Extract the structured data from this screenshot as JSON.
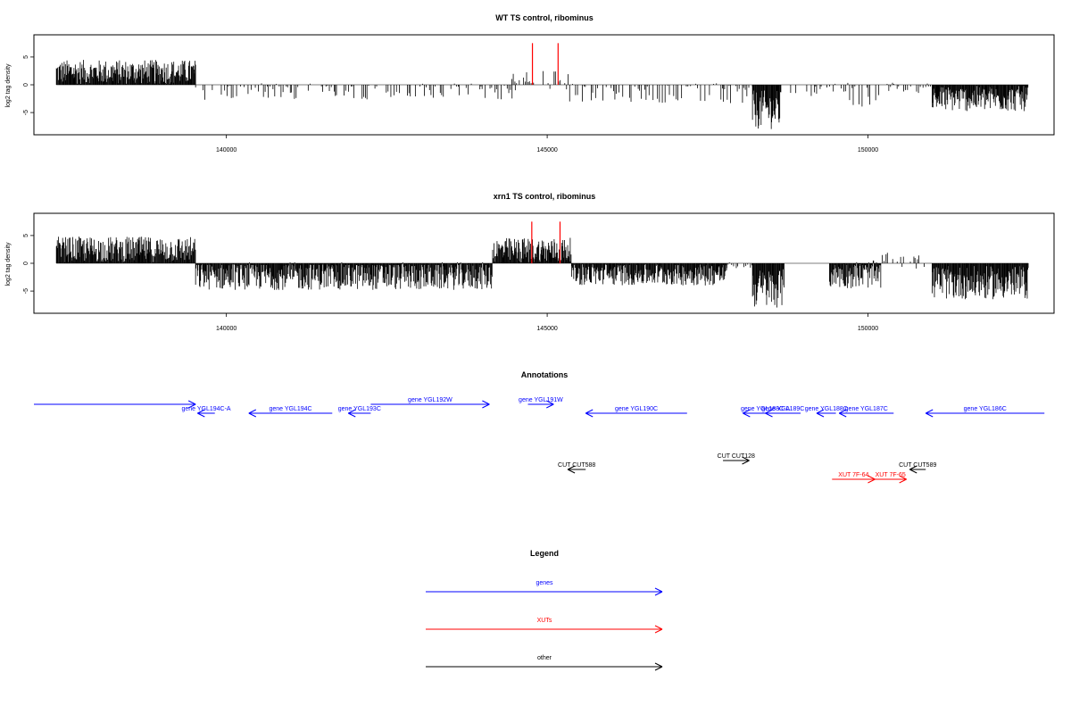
{
  "chart_data": [
    {
      "type": "bar",
      "title": "WT TS control, ribominus",
      "ylabel": "log2 tag density",
      "xlabel": "",
      "xlim": [
        137000,
        152900
      ],
      "ylim": [
        -9,
        9
      ],
      "yticks": [
        -5,
        0,
        5
      ],
      "xticks": [
        140000,
        145000,
        150000
      ],
      "grid": false,
      "density_profile": [
        {
          "from": 137350,
          "to": 139520,
          "mean": 2.3,
          "amp": 2.2
        },
        {
          "from": 139520,
          "to": 144550,
          "mean": -1.2,
          "amp": 1.5,
          "sparse": true
        },
        {
          "from": 144450,
          "to": 145350,
          "mean": 0.8,
          "amp": 1.8,
          "sparse": true
        },
        {
          "from": 145350,
          "to": 148200,
          "mean": -1.5,
          "amp": 1.8,
          "sparse": true
        },
        {
          "from": 148200,
          "to": 148650,
          "mean": -4.5,
          "amp": 3.5
        },
        {
          "from": 148650,
          "to": 149600,
          "mean": -1.0,
          "amp": 1.3,
          "sparse": true
        },
        {
          "from": 149600,
          "to": 150200,
          "mean": -2.0,
          "amp": 2.5,
          "sparse": true
        },
        {
          "from": 150200,
          "to": 151000,
          "mean": -0.5,
          "amp": 1.0,
          "sparse": true
        },
        {
          "from": 151000,
          "to": 152500,
          "mean": -2.5,
          "amp": 2.3
        }
      ],
      "highlight_bars": [
        {
          "x": 144770,
          "y": 7.5,
          "color": "#ff0000"
        },
        {
          "x": 145170,
          "y": 7.5,
          "color": "#ff0000"
        }
      ],
      "colors": {
        "bars": "#000000",
        "highlight": "#ff0000"
      }
    },
    {
      "type": "bar",
      "title": "xrn1 TS control, ribominus",
      "ylabel": "log2 tag density",
      "xlabel": "",
      "xlim": [
        137000,
        152900
      ],
      "ylim": [
        -9,
        9
      ],
      "yticks": [
        -5,
        0,
        5
      ],
      "xticks": [
        140000,
        145000,
        150000
      ],
      "grid": false,
      "density_profile": [
        {
          "from": 137350,
          "to": 139520,
          "mean": 2.5,
          "amp": 2.3
        },
        {
          "from": 139520,
          "to": 144150,
          "mean": -2.3,
          "amp": 2.5
        },
        {
          "from": 144150,
          "to": 145380,
          "mean": 2.3,
          "amp": 2.3
        },
        {
          "from": 145380,
          "to": 147800,
          "mean": -2.0,
          "amp": 2.0
        },
        {
          "from": 147800,
          "to": 148200,
          "mean": -0.3,
          "amp": 0.6,
          "sparse": true
        },
        {
          "from": 148200,
          "to": 148700,
          "mean": -4.5,
          "amp": 3.5
        },
        {
          "from": 149400,
          "to": 150200,
          "mean": -2.0,
          "amp": 2.5
        },
        {
          "from": 150200,
          "to": 150900,
          "mean": 0.5,
          "amp": 1.5,
          "sparse": true
        },
        {
          "from": 151000,
          "to": 152500,
          "mean": -3.5,
          "amp": 3.0
        }
      ],
      "highlight_bars": [
        {
          "x": 144760,
          "y": 7.5,
          "color": "#ff0000"
        },
        {
          "x": 145200,
          "y": 7.5,
          "color": "#ff0000"
        }
      ],
      "colors": {
        "bars": "#000000",
        "highlight": "#ff0000"
      }
    }
  ],
  "annotations": {
    "title": "Annotations",
    "features": [
      {
        "label": "",
        "start": 137000,
        "end": 139520,
        "strand": "+",
        "kind": "gene",
        "row": 0
      },
      {
        "label": "gene YGL194C-A",
        "start": 139550,
        "end": 139820,
        "strand": "-",
        "kind": "gene",
        "row": 1
      },
      {
        "label": "gene YGL194C",
        "start": 140350,
        "end": 141650,
        "strand": "-",
        "kind": "gene",
        "row": 1
      },
      {
        "label": "gene YGL193C",
        "start": 141900,
        "end": 142250,
        "strand": "-",
        "kind": "gene",
        "row": 1
      },
      {
        "label": "gene YGL192W",
        "start": 142250,
        "end": 144100,
        "strand": "+",
        "kind": "gene",
        "row": 0
      },
      {
        "label": "gene YGL191W",
        "start": 144700,
        "end": 145100,
        "strand": "+",
        "kind": "gene",
        "row": 0
      },
      {
        "label": "gene YGL190C",
        "start": 145600,
        "end": 147180,
        "strand": "-",
        "kind": "gene",
        "row": 1
      },
      {
        "label": "gene YGL188C-A",
        "start": 148050,
        "end": 148750,
        "strand": "-",
        "kind": "gene",
        "row": 1
      },
      {
        "label": "gene YGL189C",
        "start": 148400,
        "end": 148950,
        "strand": "-",
        "kind": "gene",
        "row": 1
      },
      {
        "label": "gene YGL188C",
        "start": 149200,
        "end": 149500,
        "strand": "-",
        "kind": "gene",
        "row": 1
      },
      {
        "label": "gene YGL187C",
        "start": 149550,
        "end": 150400,
        "strand": "-",
        "kind": "gene",
        "row": 1
      },
      {
        "label": "gene YGL186C",
        "start": 150900,
        "end": 152750,
        "strand": "-",
        "kind": "gene",
        "row": 1
      },
      {
        "label": "CUT CUT588",
        "start": 145320,
        "end": 145600,
        "strand": "-",
        "kind": "other",
        "row": 2
      },
      {
        "label": "CUT CUT128",
        "start": 147740,
        "end": 148150,
        "strand": "+",
        "kind": "other",
        "row": 3
      },
      {
        "label": "CUT CUT589",
        "start": 150650,
        "end": 150900,
        "strand": "-",
        "kind": "other",
        "row": 2
      },
      {
        "label": "XUT 7F-64",
        "start": 149440,
        "end": 150110,
        "strand": "+",
        "kind": "xut",
        "row": 4
      },
      {
        "label": "XUT 7F-65",
        "start": 150100,
        "end": 150600,
        "strand": "+",
        "kind": "xut",
        "row": 4
      }
    ]
  },
  "legend": {
    "title": "Legend",
    "items": [
      {
        "label": "genes",
        "color": "#0000ff"
      },
      {
        "label": "XUTs",
        "color": "#ff0000"
      },
      {
        "label": "other",
        "color": "#000000"
      }
    ]
  }
}
